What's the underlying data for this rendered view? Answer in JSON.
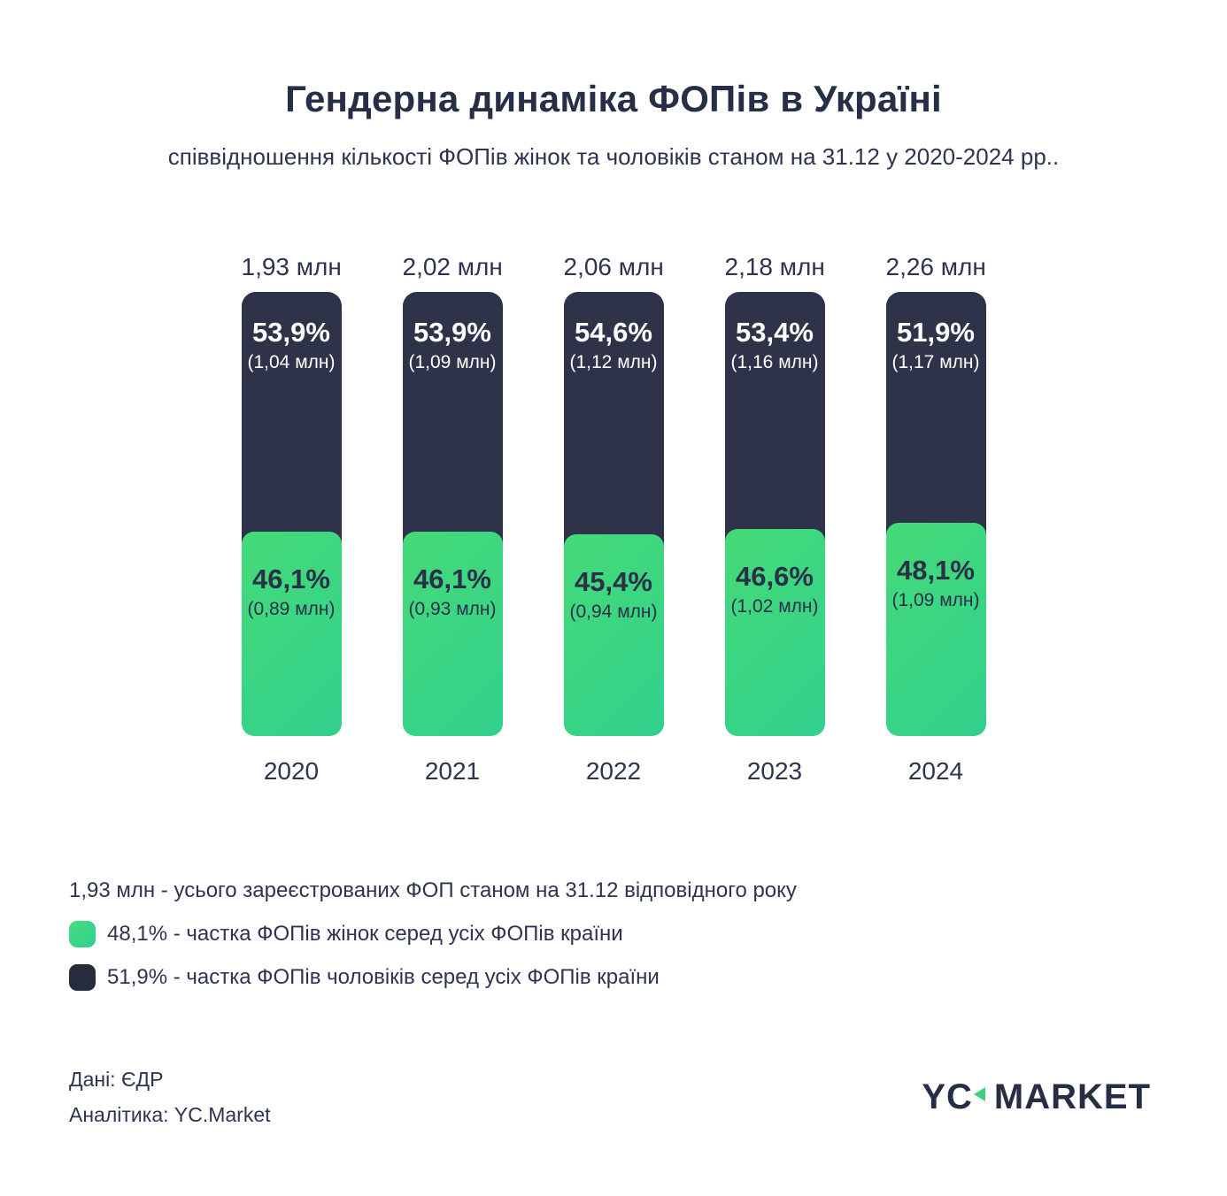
{
  "title": "Гендерна динаміка ФОПів в Україні",
  "subtitle": "співвідношення кількості ФОПів жінок та чоловіків станом на 31.12 у 2020-2024 рр..",
  "colors": {
    "male_navy": "#2e334a",
    "female_green_start": "#45db78",
    "female_green_end": "#31d08d",
    "legend_male_swatch": "#262b3d",
    "text_navy": "#2e3450",
    "logo_triangle_green": "#3ed17d",
    "background": "#ffffff"
  },
  "chart_data": {
    "type": "bar",
    "subtype": "100-percent-stacked-columns",
    "title": "Гендерна динаміка ФОПів в Україні",
    "subtitle": "співвідношення кількості ФОПів жінок та чоловіків станом на 31.12 у 2020-2024 рр..",
    "categories": [
      "2020",
      "2021",
      "2022",
      "2023",
      "2024"
    ],
    "totals_mln": [
      1.93,
      2.02,
      2.06,
      2.18,
      2.26
    ],
    "totals_labels": [
      "1,93 млн",
      "2,02 млн",
      "2,06 млн",
      "2,18 млн",
      "2,26 млн"
    ],
    "series": [
      {
        "name": "частка ФОПів жінок серед усіх ФОПів країни",
        "color": "#3bd581",
        "values_pct": [
          46.1,
          46.1,
          45.4,
          46.6,
          48.1
        ],
        "values_mln": [
          0.89,
          0.93,
          0.94,
          1.02,
          1.09
        ]
      },
      {
        "name": "частка ФОПів чоловіків серед усіх ФОПів країни",
        "color": "#2e334a",
        "values_pct": [
          53.9,
          53.9,
          54.6,
          53.4,
          51.9
        ],
        "values_mln": [
          1.04,
          1.09,
          1.12,
          1.16,
          1.17
        ]
      }
    ],
    "ylim": [
      0,
      100
    ],
    "grid": false,
    "legend_position": "bottom"
  },
  "bars": [
    {
      "year": "2020",
      "total": "1,93 млн",
      "male_pct": "53,9%",
      "male_abs": "(1,04 млн)",
      "female_pct": "46,1%",
      "female_abs": "(0,89 млн)",
      "female_height": 46.1
    },
    {
      "year": "2021",
      "total": "2,02 млн",
      "male_pct": "53,9%",
      "male_abs": "(1,09 млн)",
      "female_pct": "46,1%",
      "female_abs": "(0,93 млн)",
      "female_height": 46.1
    },
    {
      "year": "2022",
      "total": "2,06 млн",
      "male_pct": "54,6%",
      "male_abs": "(1,12 млн)",
      "female_pct": "45,4%",
      "female_abs": "(0,94 млн)",
      "female_height": 45.4
    },
    {
      "year": "2023",
      "total": "2,18 млн",
      "male_pct": "53,4%",
      "male_abs": "(1,16 млн)",
      "female_pct": "46,6%",
      "female_abs": "(1,02 млн)",
      "female_height": 46.6
    },
    {
      "year": "2024",
      "total": "2,26 млн",
      "male_pct": "51,9%",
      "male_abs": "(1,17 млн)",
      "female_pct": "48,1%",
      "female_abs": "(1,09 млн)",
      "female_height": 48.1
    }
  ],
  "legend": {
    "total_line": "1,93 млн - усього зареєстрованих ФОП станом на 31.12 відповідного року",
    "female_line": "48,1% - частка ФОПів жінок серед усіх ФОПів країни",
    "male_line": "51,9% - частка ФОПів чоловіків серед усіх ФОПів країни"
  },
  "footer": {
    "source": "Дані: ЄДР",
    "analytics": "Аналітика: YC.Market"
  },
  "logo": {
    "left": "YC",
    "right": "MARKET"
  }
}
